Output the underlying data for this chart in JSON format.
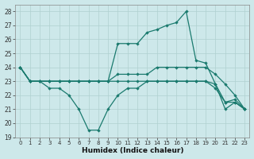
{
  "xlabel": "Humidex (Indice chaleur)",
  "bg_color": "#cde8ea",
  "grid_color": "#b0d0d0",
  "line_color": "#1a7a6e",
  "xlim": [
    -0.5,
    23.5
  ],
  "ylim": [
    19,
    28.5
  ],
  "yticks": [
    19,
    20,
    21,
    22,
    23,
    24,
    25,
    26,
    27,
    28
  ],
  "xticks": [
    0,
    1,
    2,
    3,
    4,
    5,
    6,
    7,
    8,
    9,
    10,
    11,
    12,
    13,
    14,
    15,
    16,
    17,
    18,
    19,
    20,
    21,
    22,
    23
  ],
  "series": [
    [
      24.0,
      23.0,
      23.0,
      22.5,
      22.5,
      22.0,
      21.0,
      19.5,
      19.5,
      21.0,
      22.0,
      22.5,
      22.5,
      23.0,
      23.0,
      23.0,
      23.0,
      23.0,
      23.0,
      23.0,
      22.8,
      21.0,
      21.5,
      21.0
    ],
    [
      24.0,
      23.0,
      23.0,
      23.0,
      23.0,
      23.0,
      23.0,
      23.0,
      23.0,
      23.0,
      23.0,
      23.0,
      23.0,
      23.0,
      23.0,
      23.0,
      23.0,
      23.0,
      23.0,
      23.0,
      22.5,
      21.5,
      21.5,
      21.0
    ],
    [
      24.0,
      23.0,
      23.0,
      23.0,
      23.0,
      23.0,
      23.0,
      23.0,
      23.0,
      23.0,
      23.5,
      23.5,
      23.5,
      23.5,
      24.0,
      24.0,
      24.0,
      24.0,
      24.0,
      24.0,
      23.5,
      22.8,
      22.0,
      21.0
    ],
    [
      24.0,
      23.0,
      23.0,
      23.0,
      23.0,
      23.0,
      23.0,
      23.0,
      23.0,
      23.0,
      25.7,
      25.7,
      25.7,
      26.5,
      26.7,
      27.0,
      27.2,
      28.0,
      24.5,
      24.3,
      22.8,
      21.5,
      21.7,
      21.0
    ]
  ]
}
